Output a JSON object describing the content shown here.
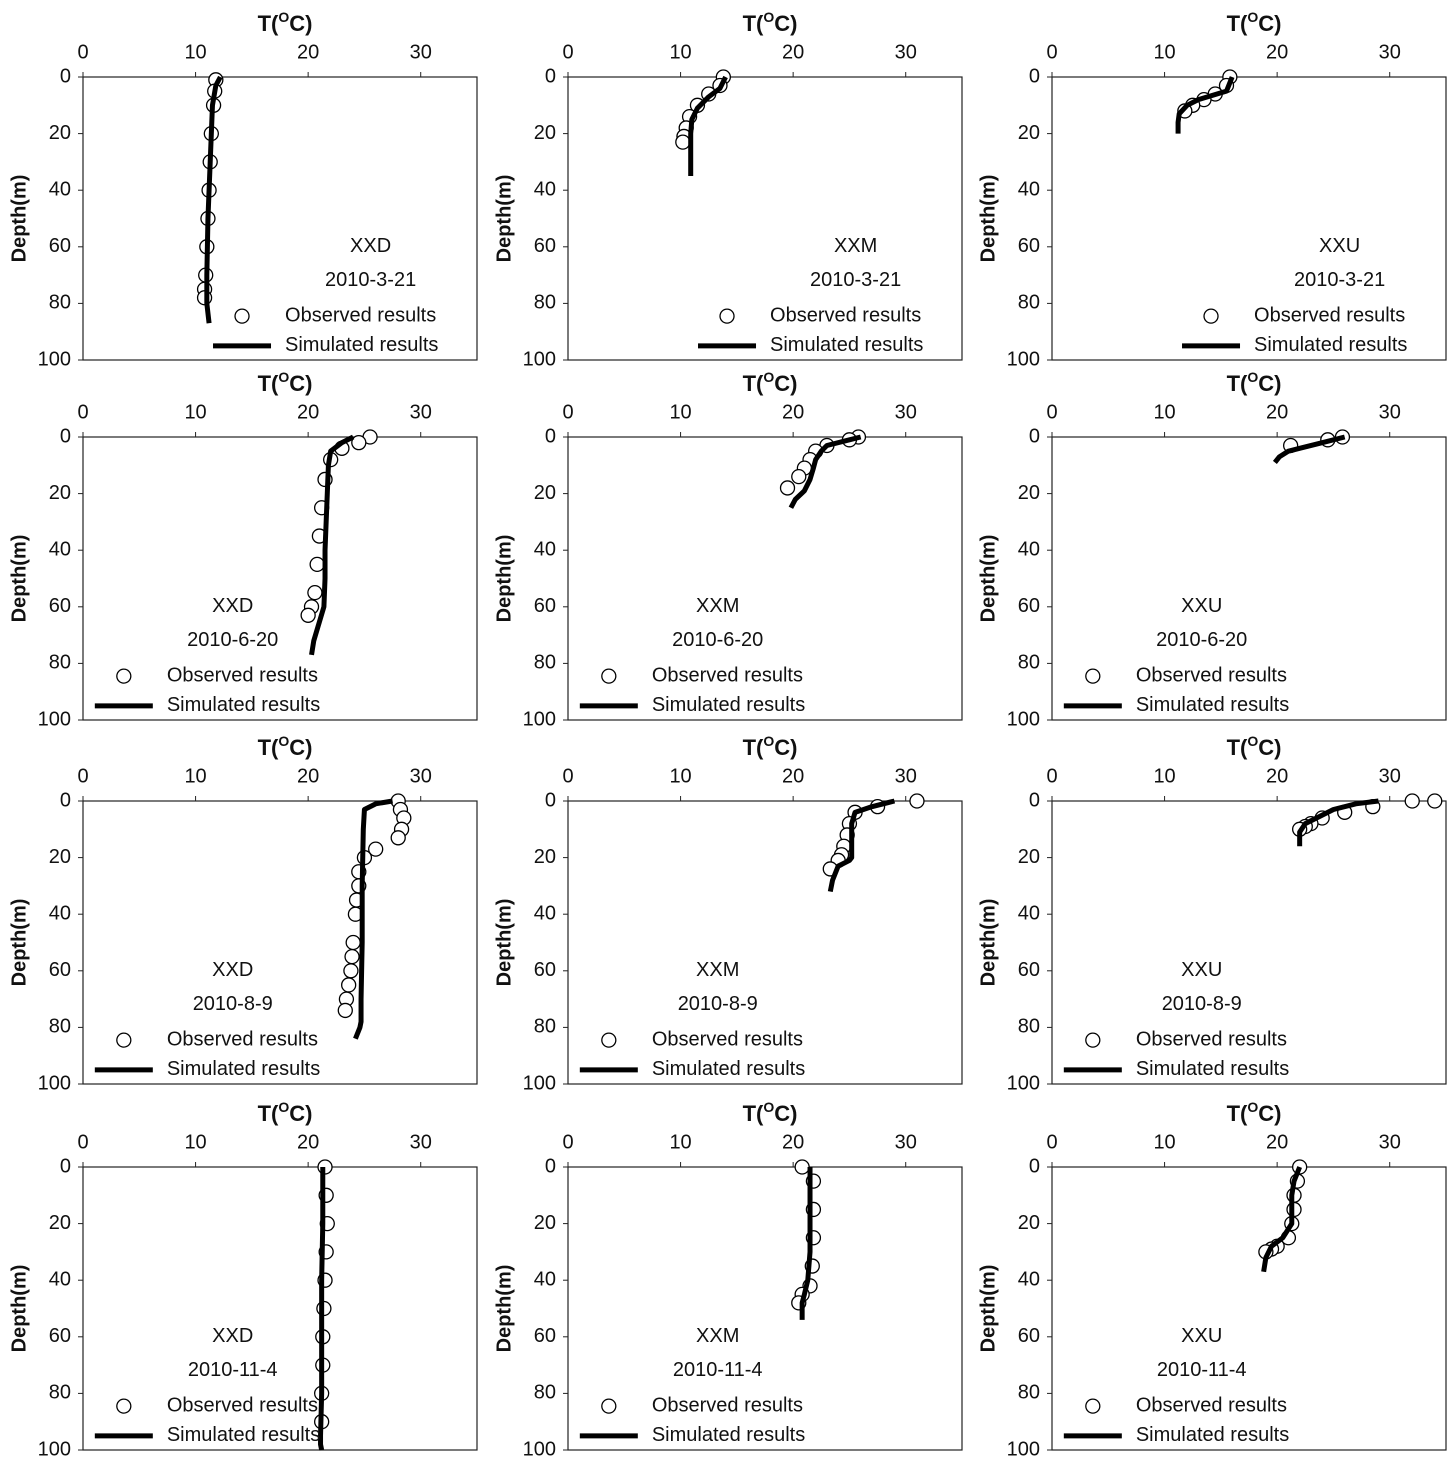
{
  "chart_data": [
    {
      "type": "profile",
      "xlabel": [
        "T(",
        "O",
        "C)"
      ],
      "ylabel": "Depth(m)",
      "site": "XXD",
      "date": "2010-3-21",
      "legend": "lower right",
      "xlim": [
        0,
        35
      ],
      "xticks": [
        0,
        10,
        20,
        30
      ],
      "ylim": [
        0,
        100
      ],
      "yticks": [
        0,
        20,
        40,
        60,
        80,
        100
      ],
      "y_inverted": true,
      "series": [
        {
          "name": "Observed results",
          "color": "#000000",
          "marker": "circle",
          "x": [
            11.8,
            11.7,
            11.6,
            11.4,
            11.3,
            11.2,
            11.1,
            11.0,
            10.9,
            10.8,
            10.8
          ],
          "values": [
            1,
            5,
            10,
            20,
            30,
            40,
            50,
            60,
            70,
            75,
            78
          ]
        },
        {
          "name": "Simulated results",
          "color": "#000000",
          "marker": "line",
          "x": [
            12.2,
            11.8,
            11.5,
            11.3,
            11.1,
            11.0,
            11.0,
            11.2
          ],
          "values": [
            0,
            3,
            10,
            30,
            50,
            70,
            80,
            87
          ]
        }
      ]
    },
    {
      "type": "profile",
      "xlabel": [
        "T(",
        "O",
        "C)"
      ],
      "ylabel": "Depth(m)",
      "site": "XXM",
      "date": "2010-3-21",
      "legend": "lower right",
      "xlim": [
        0,
        35
      ],
      "xticks": [
        0,
        10,
        20,
        30
      ],
      "ylim": [
        0,
        100
      ],
      "yticks": [
        0,
        20,
        40,
        60,
        80,
        100
      ],
      "y_inverted": true,
      "series": [
        {
          "name": "Observed results",
          "color": "#000000",
          "marker": "circle",
          "x": [
            13.8,
            13.5,
            12.5,
            11.5,
            10.8,
            10.5,
            10.3,
            10.2
          ],
          "values": [
            0,
            3,
            6,
            10,
            14,
            18,
            21,
            23
          ]
        },
        {
          "name": "Simulated results",
          "color": "#000000",
          "marker": "line",
          "x": [
            14,
            13.5,
            12.5,
            11.5,
            11,
            10.9,
            10.9,
            10.9
          ],
          "values": [
            0,
            4,
            7,
            11,
            15,
            20,
            28,
            35
          ]
        }
      ]
    },
    {
      "type": "profile",
      "xlabel": [
        "T(",
        "O",
        "C)"
      ],
      "ylabel": "Depth(m)",
      "site": "XXU",
      "date": "2010-3-21",
      "legend": "lower right",
      "xlim": [
        0,
        35
      ],
      "xticks": [
        0,
        10,
        20,
        30
      ],
      "ylim": [
        0,
        100
      ],
      "yticks": [
        0,
        20,
        40,
        60,
        80,
        100
      ],
      "y_inverted": true,
      "series": [
        {
          "name": "Observed results",
          "color": "#000000",
          "marker": "circle",
          "x": [
            15.8,
            15.5,
            14.5,
            13.5,
            12.5,
            11.8
          ],
          "values": [
            0,
            3,
            6,
            8,
            10,
            12
          ]
        },
        {
          "name": "Simulated results",
          "color": "#000000",
          "marker": "line",
          "x": [
            16,
            15.5,
            13,
            12,
            11.3,
            11.2,
            11.2
          ],
          "values": [
            0,
            5,
            8,
            10,
            13,
            16,
            20
          ]
        }
      ]
    },
    {
      "type": "profile",
      "xlabel": [
        "T(",
        "O",
        "C)"
      ],
      "ylabel": "Depth(m)",
      "site": "XXD",
      "date": "2010-6-20",
      "legend": "lower left",
      "xlim": [
        0,
        35
      ],
      "xticks": [
        0,
        10,
        20,
        30
      ],
      "ylim": [
        0,
        100
      ],
      "yticks": [
        0,
        20,
        40,
        60,
        80,
        100
      ],
      "y_inverted": true,
      "series": [
        {
          "name": "Observed results",
          "color": "#000000",
          "marker": "circle",
          "x": [
            25.5,
            24.5,
            23,
            22,
            21.5,
            21.2,
            21,
            20.8,
            20.6,
            20.3,
            20
          ],
          "values": [
            0,
            2,
            4,
            8,
            15,
            25,
            35,
            45,
            55,
            60,
            63
          ]
        },
        {
          "name": "Simulated results",
          "color": "#000000",
          "marker": "line",
          "x": [
            24,
            23,
            22,
            21.8,
            21.7,
            21.6,
            21.5,
            21.5,
            21.4,
            20.5,
            20.3
          ],
          "values": [
            0,
            2,
            5,
            10,
            20,
            30,
            40,
            50,
            60,
            72,
            77
          ]
        }
      ]
    },
    {
      "type": "profile",
      "xlabel": [
        "T(",
        "O",
        "C)"
      ],
      "ylabel": "Depth(m)",
      "site": "XXM",
      "date": "2010-6-20",
      "legend": "lower left",
      "xlim": [
        0,
        35
      ],
      "xticks": [
        0,
        10,
        20,
        30
      ],
      "ylim": [
        0,
        100
      ],
      "yticks": [
        0,
        20,
        40,
        60,
        80,
        100
      ],
      "y_inverted": true,
      "series": [
        {
          "name": "Observed results",
          "color": "#000000",
          "marker": "circle",
          "x": [
            25.8,
            25,
            23,
            22,
            21.5,
            21,
            20.5,
            19.5
          ],
          "values": [
            0,
            1,
            3,
            5,
            8,
            11,
            14,
            18
          ]
        },
        {
          "name": "Simulated results",
          "color": "#000000",
          "marker": "line",
          "x": [
            26,
            25,
            23,
            22.5,
            22,
            21.8,
            21.5,
            21,
            20.2,
            19.8
          ],
          "values": [
            0,
            1,
            3,
            5,
            8,
            11,
            15,
            19,
            22,
            25
          ]
        }
      ]
    },
    {
      "type": "profile",
      "xlabel": [
        "T(",
        "O",
        "C)"
      ],
      "ylabel": "Depth(m)",
      "site": "XXU",
      "date": "2010-6-20",
      "legend": "lower left",
      "xlim": [
        0,
        35
      ],
      "xticks": [
        0,
        10,
        20,
        30
      ],
      "ylim": [
        0,
        100
      ],
      "yticks": [
        0,
        20,
        40,
        60,
        80,
        100
      ],
      "y_inverted": true,
      "series": [
        {
          "name": "Observed results",
          "color": "#000000",
          "marker": "circle",
          "x": [
            25.8,
            24.5,
            21.2
          ],
          "values": [
            0,
            1,
            3
          ]
        },
        {
          "name": "Simulated results",
          "color": "#000000",
          "marker": "line",
          "x": [
            26,
            24,
            22,
            21,
            20.2,
            19.8
          ],
          "values": [
            0,
            2,
            4,
            5,
            7,
            9
          ]
        }
      ]
    },
    {
      "type": "profile",
      "xlabel": [
        "T(",
        "O",
        "C)"
      ],
      "ylabel": "Depth(m)",
      "site": "XXD",
      "date": "2010-8-9",
      "legend": "lower left",
      "xlim": [
        0,
        35
      ],
      "xticks": [
        0,
        10,
        20,
        30
      ],
      "ylim": [
        0,
        100
      ],
      "yticks": [
        0,
        20,
        40,
        60,
        80,
        100
      ],
      "y_inverted": true,
      "series": [
        {
          "name": "Observed results",
          "color": "#000000",
          "marker": "circle",
          "x": [
            28,
            28.2,
            28.5,
            28.3,
            28,
            26,
            25,
            24.5,
            24.5,
            24.3,
            24.2,
            24,
            23.9,
            23.8,
            23.6,
            23.4,
            23.3
          ],
          "values": [
            0,
            3,
            6,
            10,
            13,
            17,
            20,
            25,
            30,
            35,
            40,
            50,
            55,
            60,
            65,
            70,
            74
          ]
        },
        {
          "name": "Simulated results",
          "color": "#000000",
          "marker": "line",
          "x": [
            27.5,
            26,
            25,
            24.9,
            24.8,
            24.8,
            24.7,
            24.7,
            24.6,
            24.2
          ],
          "values": [
            0,
            1,
            3,
            10,
            30,
            50,
            70,
            78,
            80,
            84
          ]
        }
      ]
    },
    {
      "type": "profile",
      "xlabel": [
        "T(",
        "O",
        "C)"
      ],
      "ylabel": "Depth(m)",
      "site": "XXM",
      "date": "2010-8-9",
      "legend": "lower left",
      "xlim": [
        0,
        35
      ],
      "xticks": [
        0,
        10,
        20,
        30
      ],
      "ylim": [
        0,
        100
      ],
      "yticks": [
        0,
        20,
        40,
        60,
        80,
        100
      ],
      "y_inverted": true,
      "series": [
        {
          "name": "Observed results",
          "color": "#000000",
          "marker": "circle",
          "x": [
            31,
            27.5,
            25.5,
            25,
            24.8,
            24.5,
            24.3,
            24,
            23.3
          ],
          "values": [
            0,
            2,
            4,
            8,
            12,
            16,
            19,
            21,
            24
          ]
        },
        {
          "name": "Simulated results",
          "color": "#000000",
          "marker": "line",
          "x": [
            29,
            27,
            25.5,
            25.2,
            25.2,
            25,
            24,
            23.5,
            23.3
          ],
          "values": [
            0,
            2,
            4,
            8,
            20,
            21,
            23,
            28,
            32
          ]
        }
      ]
    },
    {
      "type": "profile",
      "xlabel": [
        "T(",
        "O",
        "C)"
      ],
      "ylabel": "Depth(m)",
      "site": "XXU",
      "date": "2010-8-9",
      "legend": "lower left",
      "xlim": [
        0,
        35
      ],
      "xticks": [
        0,
        10,
        20,
        30
      ],
      "ylim": [
        0,
        100
      ],
      "yticks": [
        0,
        20,
        40,
        60,
        80,
        100
      ],
      "y_inverted": true,
      "series": [
        {
          "name": "Observed results",
          "color": "#000000",
          "marker": "circle",
          "x": [
            34,
            32,
            28.5,
            26,
            24,
            23,
            22.5,
            22
          ],
          "values": [
            0,
            0,
            2,
            4,
            6,
            8,
            9,
            10
          ]
        },
        {
          "name": "Simulated results",
          "color": "#000000",
          "marker": "line",
          "x": [
            29,
            27,
            25,
            23.5,
            22.5,
            22,
            22
          ],
          "values": [
            0,
            1,
            3,
            6,
            8,
            11,
            16
          ]
        }
      ]
    },
    {
      "type": "profile",
      "xlabel": [
        "T(",
        "O",
        "C)"
      ],
      "ylabel": "Depth(m)",
      "site": "XXD",
      "date": "2010-11-4",
      "legend": "lower left",
      "xlim": [
        0,
        35
      ],
      "xticks": [
        0,
        10,
        20,
        30
      ],
      "ylim": [
        0,
        100
      ],
      "yticks": [
        0,
        20,
        40,
        60,
        80,
        100
      ],
      "y_inverted": true,
      "series": [
        {
          "name": "Observed results",
          "color": "#000000",
          "marker": "circle",
          "x": [
            21.5,
            21.6,
            21.7,
            21.6,
            21.5,
            21.4,
            21.3,
            21.3,
            21.2,
            21.2
          ],
          "values": [
            0,
            10,
            20,
            30,
            40,
            50,
            60,
            70,
            80,
            90
          ]
        },
        {
          "name": "Simulated results",
          "color": "#000000",
          "marker": "line",
          "x": [
            21.3,
            21.3,
            21.2,
            21.2,
            21.2,
            21.1,
            21.1,
            21.2
          ],
          "values": [
            0,
            20,
            40,
            60,
            80,
            95,
            98,
            100
          ]
        }
      ]
    },
    {
      "type": "profile",
      "xlabel": [
        "T(",
        "O",
        "C)"
      ],
      "ylabel": "Depth(m)",
      "site": "XXM",
      "date": "2010-11-4",
      "legend": "lower left",
      "xlim": [
        0,
        35
      ],
      "xticks": [
        0,
        10,
        20,
        30
      ],
      "ylim": [
        0,
        100
      ],
      "yticks": [
        0,
        20,
        40,
        60,
        80,
        100
      ],
      "y_inverted": true,
      "series": [
        {
          "name": "Observed results",
          "color": "#000000",
          "marker": "circle",
          "x": [
            20.8,
            21.8,
            21.8,
            21.8,
            21.7,
            21.5,
            20.8,
            20.5
          ],
          "values": [
            0,
            5,
            15,
            25,
            35,
            42,
            45,
            48
          ]
        },
        {
          "name": "Simulated results",
          "color": "#000000",
          "marker": "line",
          "x": [
            21.5,
            21.5,
            21.5,
            21.3,
            21,
            20.8,
            20.8
          ],
          "values": [
            0,
            10,
            30,
            40,
            45,
            48,
            54
          ]
        }
      ]
    },
    {
      "type": "profile",
      "xlabel": [
        "T(",
        "O",
        "C)"
      ],
      "ylabel": "Depth(m)",
      "site": "XXU",
      "date": "2010-11-4",
      "legend": "lower left",
      "xlim": [
        0,
        35
      ],
      "xticks": [
        0,
        10,
        20,
        30
      ],
      "ylim": [
        0,
        100
      ],
      "yticks": [
        0,
        20,
        40,
        60,
        80,
        100
      ],
      "y_inverted": true,
      "series": [
        {
          "name": "Observed results",
          "color": "#000000",
          "marker": "circle",
          "x": [
            22,
            21.8,
            21.5,
            21.5,
            21.3,
            21,
            20,
            19.5,
            19
          ],
          "values": [
            0,
            5,
            10,
            15,
            20,
            25,
            28,
            29,
            30
          ]
        },
        {
          "name": "Simulated results",
          "color": "#000000",
          "marker": "line",
          "x": [
            22,
            21.5,
            21.3,
            21.3,
            20.5,
            19.5,
            19,
            18.8
          ],
          "values": [
            0,
            5,
            10,
            20,
            25,
            28,
            32,
            37
          ]
        }
      ]
    }
  ]
}
